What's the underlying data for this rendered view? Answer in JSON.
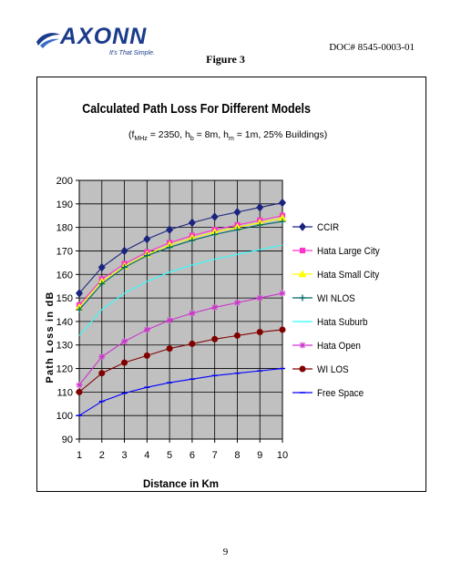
{
  "header": {
    "logo_text": "AXONN",
    "logo_tagline": "It's That Simple.",
    "doc_number": "DOC# 8545-0003-01",
    "figure_caption": "Figure 3"
  },
  "footer": {
    "page_number": "9"
  },
  "colors": {
    "plot_background": "#c0c0c0",
    "grid": "#000000",
    "logo": "#1b3c8c"
  },
  "chart_data": {
    "type": "line",
    "title": "Calculated Path Loss For Different Models",
    "subtitle_parts": {
      "open": "(f",
      "f_sub": "MHz",
      "f_val": " = 2350, h",
      "b_sub": "b",
      "b_val": " = 8m, h",
      "m_sub": "m",
      "m_val": " = 1m, 25% Buildings)"
    },
    "xlabel": "Distance in Km",
    "ylabel": "Path Loss in dB",
    "x": [
      1,
      2,
      3,
      4,
      5,
      6,
      7,
      8,
      9,
      10
    ],
    "xlim": [
      1,
      10
    ],
    "ylim": [
      90,
      200
    ],
    "yticks": [
      90,
      100,
      110,
      120,
      130,
      140,
      150,
      160,
      170,
      180,
      190,
      200
    ],
    "grid": true,
    "legend_position": "right",
    "series": [
      {
        "name": "CCIR",
        "color": "#1a237e",
        "marker": "diamond",
        "values": [
          152,
          163,
          170,
          175,
          179,
          182,
          184.5,
          186.5,
          188.5,
          190.5
        ]
      },
      {
        "name": "Hata Large City",
        "color": "#ff33cc",
        "marker": "square",
        "values": [
          147,
          158,
          164.5,
          169.5,
          173.5,
          176.5,
          179,
          181,
          183,
          185
        ]
      },
      {
        "name": "Hata Small City",
        "color": "#ffff00",
        "marker": "triangle",
        "values": [
          146,
          157,
          163.5,
          168.5,
          172.5,
          175.5,
          178,
          180,
          182,
          184
        ]
      },
      {
        "name": "WI NLOS",
        "color": "#006666",
        "marker": "cross",
        "values": [
          145,
          156,
          163,
          168,
          171.5,
          174.5,
          177,
          179,
          181,
          182.5
        ]
      },
      {
        "name": "Hata Suburb",
        "color": "#33ffff",
        "marker": "none",
        "values": [
          134,
          145,
          152,
          157,
          161,
          164,
          166.5,
          168.5,
          170.5,
          172.5
        ]
      },
      {
        "name": "Hata Open",
        "color": "#cc33cc",
        "marker": "star",
        "values": [
          113,
          125,
          131.5,
          136.5,
          140.5,
          143.5,
          146,
          148,
          150,
          152
        ]
      },
      {
        "name": "WI LOS",
        "color": "#800000",
        "marker": "circle",
        "values": [
          110,
          118,
          122.5,
          125.5,
          128.5,
          130.5,
          132.5,
          134,
          135.5,
          136.5
        ]
      },
      {
        "name": "Free Space",
        "color": "#0000ff",
        "marker": "dash",
        "values": [
          100,
          106,
          109.5,
          112,
          114,
          115.5,
          117,
          118,
          119,
          120
        ]
      }
    ]
  }
}
